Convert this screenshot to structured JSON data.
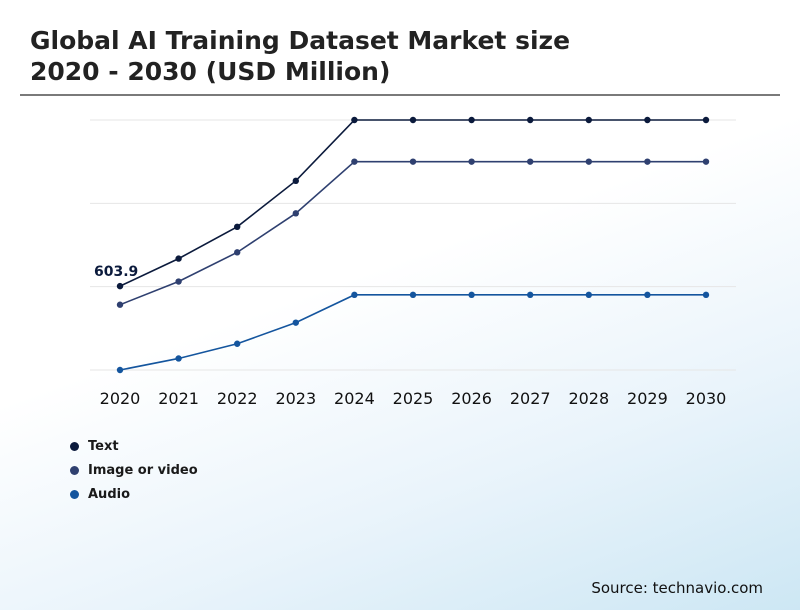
{
  "header": {
    "title_line1": "Global AI Training Dataset Market size",
    "title_line2": "2020 - 2030 (USD Million)"
  },
  "source": "Source: technavio.com",
  "chart_data": {
    "type": "line",
    "categories": [
      "2020",
      "2021",
      "2022",
      "2023",
      "2024",
      "2025",
      "2026",
      "2027",
      "2028",
      "2029",
      "2030"
    ],
    "ylim": [
      0,
      1800
    ],
    "grid": true,
    "legend_position": "bottom-left",
    "series": [
      {
        "name": "Text",
        "color": "#0b1a3c",
        "values": [
          603.9,
          802,
          1031,
          1362,
          1800,
          1800,
          1800,
          1800,
          1800,
          1800,
          1800
        ]
      },
      {
        "name": "Image or video",
        "color": "#2f4070",
        "values": [
          470,
          637,
          847,
          1128,
          1500,
          1500,
          1500,
          1500,
          1500,
          1500,
          1500
        ]
      },
      {
        "name": "Audio",
        "color": "#14559e",
        "values": [
          0,
          83,
          189,
          341,
          541,
          541,
          541,
          541,
          541,
          541,
          541
        ]
      }
    ],
    "annotations": [
      {
        "series": 0,
        "index": 0,
        "label": "603.9"
      }
    ]
  }
}
